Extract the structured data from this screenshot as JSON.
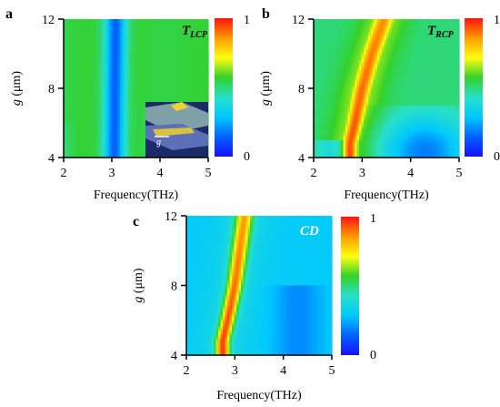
{
  "colors": {
    "colormap": [
      "#1a10ff",
      "#0062ff",
      "#00c8ff",
      "#28e0c8",
      "#34d12a",
      "#ffff10",
      "#ff9a00",
      "#ff1414"
    ],
    "axis": "#000000"
  },
  "chart_data": [
    {
      "panel": "a",
      "type": "heatmap",
      "title": "T",
      "title_sub": "LCP",
      "xlabel": "Frequency(THz)",
      "ylabel": "g",
      "ylabel_unit": " (μm)",
      "xticks": [
        "2",
        "3",
        "4",
        "5"
      ],
      "yticks": [
        "4",
        "8",
        "12"
      ],
      "xlim": [
        2,
        5
      ],
      "ylim": [
        4,
        12
      ],
      "colorbar_ticks": [
        "1",
        "0"
      ],
      "colorbar_range": [
        0,
        1
      ],
      "description_of_field": "broad minimum (blue band) near 3.0-3.2 THz at all g; values around 0.5-0.6 elsewhere",
      "inset": {
        "label": "g",
        "shown": true
      }
    },
    {
      "panel": "b",
      "type": "heatmap",
      "title": "T",
      "title_sub": "RCP",
      "xlabel": "Frequency(THz)",
      "ylabel": "g",
      "ylabel_unit": " (μm)",
      "xticks": [
        "2",
        "3",
        "4",
        "5"
      ],
      "yticks": [
        "4",
        "8",
        "12"
      ],
      "xlim": [
        2,
        5
      ],
      "ylim": [
        4,
        12
      ],
      "colorbar_ticks": [
        "1",
        "0"
      ],
      "colorbar_range": [
        0,
        1
      ],
      "ridge_x": [
        2.75,
        2.85,
        3.0,
        3.2,
        3.45
      ],
      "ridge_g": [
        4.8,
        6.0,
        8.0,
        10.0,
        12.0
      ]
    },
    {
      "panel": "c",
      "type": "heatmap",
      "title": "CD",
      "xlabel": "Frequency(THz)",
      "ylabel": "g",
      "ylabel_unit": " (μm)",
      "xticks": [
        "2",
        "3",
        "4",
        "5"
      ],
      "yticks": [
        "4",
        "8",
        "12"
      ],
      "xlim": [
        2,
        5
      ],
      "ylim": [
        4,
        12
      ],
      "colorbar_ticks": [
        "1",
        "0"
      ],
      "colorbar_range": [
        0,
        1
      ],
      "ridge_x": [
        2.75,
        2.85,
        3.0,
        3.1,
        3.2
      ],
      "ridge_g": [
        4.8,
        6.0,
        8.0,
        10.0,
        12.0
      ]
    }
  ]
}
